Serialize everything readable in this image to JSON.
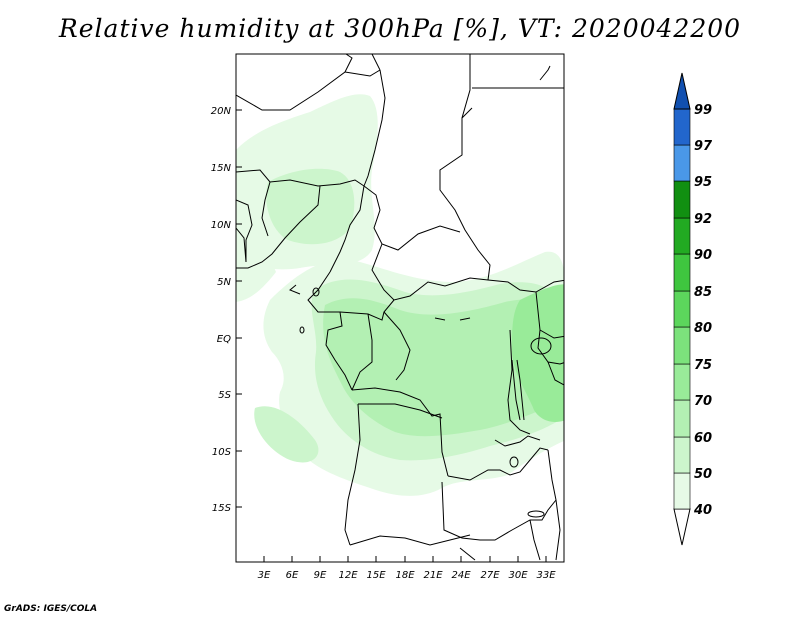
{
  "title": "Relative humidity at 300hPa [%], VT: 2020042200",
  "credit": "GrADS: IGES/COLA",
  "map": {
    "lat_labels": [
      "20N",
      "15N",
      "10N",
      "5N",
      "EQ",
      "5S",
      "10S",
      "15S"
    ],
    "lon_labels": [
      "3E",
      "6E",
      "9E",
      "12E",
      "15E",
      "18E",
      "21E",
      "24E",
      "27E",
      "30E",
      "33E"
    ]
  },
  "colorbar": {
    "levels": [
      "40",
      "50",
      "60",
      "70",
      "75",
      "80",
      "85",
      "90",
      "92",
      "95",
      "97",
      "99"
    ],
    "colors": [
      "#ffffff",
      "#e6fae6",
      "#ccf5cc",
      "#b3f0b3",
      "#99eb99",
      "#7ce27c",
      "#5cd65c",
      "#3fc63f",
      "#22aa22",
      "#118f11",
      "#4a98e8",
      "#2266cc",
      "#1150b0"
    ]
  }
}
